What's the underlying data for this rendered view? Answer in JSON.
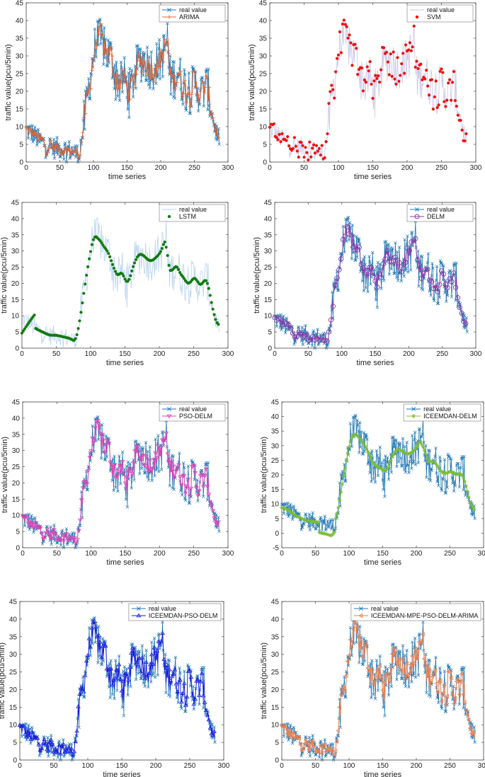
{
  "figure_title": "",
  "chart_data": [
    {
      "type": "line",
      "title": "",
      "xlabel": "time series",
      "ylabel": "traffic value(pcu/5min)",
      "xlim": [
        0,
        300
      ],
      "ylim": [
        0,
        45
      ],
      "xticks": [
        0,
        50,
        100,
        150,
        200,
        250,
        300
      ],
      "yticks": [
        0,
        5,
        10,
        15,
        20,
        25,
        30,
        35,
        40,
        45
      ],
      "series": [
        {
          "name": "real value",
          "color": "#1f77b4",
          "marker": "x",
          "style": "line"
        },
        {
          "name": "ARIMA",
          "color": "#e8622c",
          "marker": "+",
          "style": "line"
        }
      ]
    },
    {
      "type": "line",
      "title": "",
      "xlabel": "time series",
      "ylabel": "traffic value(pcu/5min)",
      "xlim": [
        0,
        300
      ],
      "ylim": [
        0,
        45
      ],
      "xticks": [
        0,
        50,
        100,
        150,
        200,
        250,
        300
      ],
      "yticks": [
        0,
        5,
        10,
        15,
        20,
        25,
        30,
        35,
        40,
        45
      ],
      "series": [
        {
          "name": "real value",
          "color": "#c9c3e6",
          "marker": "none",
          "style": "line"
        },
        {
          "name": "SVM",
          "color": "#ee1111",
          "marker": "dot",
          "style": "scatter"
        }
      ]
    },
    {
      "type": "line",
      "title": "",
      "xlabel": "time series",
      "ylabel": "traffic value(pcu/5min)",
      "xlim": [
        0,
        300
      ],
      "ylim": [
        0,
        45
      ],
      "xticks": [
        0,
        50,
        100,
        150,
        200,
        250,
        300
      ],
      "yticks": [
        0,
        5,
        10,
        15,
        20,
        25,
        30,
        35,
        40,
        45
      ],
      "series": [
        {
          "name": "real value",
          "color": "#b7d3ee",
          "marker": "none",
          "style": "line"
        },
        {
          "name": "LSTM",
          "color": "#127a12",
          "marker": "dot",
          "style": "scatter"
        }
      ]
    },
    {
      "type": "line",
      "title": "",
      "xlabel": "time series",
      "ylabel": "traffic value(pcu/5min)",
      "xlim": [
        0,
        300
      ],
      "ylim": [
        0,
        45
      ],
      "xticks": [
        0,
        50,
        100,
        150,
        200,
        250,
        300
      ],
      "yticks": [
        0,
        5,
        10,
        15,
        20,
        25,
        30,
        35,
        40,
        45
      ],
      "series": [
        {
          "name": "real value",
          "color": "#1f77b4",
          "marker": "x",
          "style": "line"
        },
        {
          "name": "DELM",
          "color": "#8a3aa8",
          "marker": "o",
          "style": "line"
        }
      ]
    },
    {
      "type": "line",
      "title": "",
      "xlabel": "time series",
      "ylabel": "traffic value(pcu/5min)",
      "xlim": [
        0,
        300
      ],
      "ylim": [
        0,
        45
      ],
      "xticks": [
        0,
        50,
        100,
        150,
        200,
        250,
        300
      ],
      "yticks": [
        0,
        5,
        10,
        15,
        20,
        25,
        30,
        35,
        40,
        45
      ],
      "series": [
        {
          "name": "real value",
          "color": "#1f77b4",
          "marker": "x",
          "style": "line"
        },
        {
          "name": "PSO-DELM",
          "color": "#e23fb4",
          "marker": "v",
          "style": "line"
        }
      ]
    },
    {
      "type": "line",
      "title": "",
      "xlabel": "time series",
      "ylabel": "traffic value(pcu/5min)",
      "xlim": [
        0,
        300
      ],
      "ylim": [
        -5,
        45
      ],
      "xticks": [
        0,
        50,
        100,
        150,
        200,
        250,
        300
      ],
      "yticks": [
        -5,
        0,
        5,
        10,
        15,
        20,
        25,
        30,
        35,
        40,
        45
      ],
      "series": [
        {
          "name": "real value",
          "color": "#1f77b4",
          "marker": "x",
          "style": "line"
        },
        {
          "name": "ICEEMDAN-DELM",
          "color": "#7cbd32",
          "marker": "*",
          "style": "line"
        }
      ]
    },
    {
      "type": "line",
      "title": "",
      "xlabel": "time series",
      "ylabel": "traffic value(pcu/5min)",
      "xlim": [
        0,
        300
      ],
      "ylim": [
        0,
        45
      ],
      "xticks": [
        0,
        50,
        100,
        150,
        200,
        250,
        300
      ],
      "yticks": [
        0,
        5,
        10,
        15,
        20,
        25,
        30,
        35,
        40,
        45
      ],
      "series": [
        {
          "name": "real value",
          "color": "#1f77b4",
          "marker": "x",
          "style": "line"
        },
        {
          "name": "ICEEMDAN-PSO-DELM",
          "color": "#1a1ae0",
          "marker": "^",
          "style": "line"
        }
      ]
    },
    {
      "type": "line",
      "title": "",
      "xlabel": "time series",
      "ylabel": "traffic value(pcu/5min)",
      "xlim": [
        0,
        300
      ],
      "ylim": [
        0,
        45
      ],
      "xticks": [
        0,
        50,
        100,
        150,
        200,
        250,
        300
      ],
      "yticks": [
        0,
        5,
        10,
        15,
        20,
        25,
        30,
        35,
        40,
        45
      ],
      "series": [
        {
          "name": "real value",
          "color": "#1f77b4",
          "marker": "x",
          "style": "line"
        },
        {
          "name": "ICEEMDAN-MPE-PSO-DELM-ARIMA",
          "color": "#ef7d4a",
          "marker": "<",
          "style": "line"
        }
      ]
    }
  ],
  "series_data": {
    "real_value_anchors": [
      [
        0,
        9
      ],
      [
        10,
        8
      ],
      [
        20,
        6
      ],
      [
        30,
        5
      ],
      [
        40,
        4
      ],
      [
        50,
        4
      ],
      [
        60,
        3.5
      ],
      [
        70,
        3
      ],
      [
        78,
        2
      ],
      [
        84,
        8
      ],
      [
        90,
        17
      ],
      [
        95,
        24
      ],
      [
        100,
        30
      ],
      [
        105,
        35
      ],
      [
        110,
        34
      ],
      [
        115,
        33
      ],
      [
        120,
        31
      ],
      [
        125,
        30
      ],
      [
        130,
        27
      ],
      [
        135,
        24
      ],
      [
        140,
        22
      ],
      [
        145,
        24
      ],
      [
        150,
        21
      ],
      [
        155,
        20
      ],
      [
        160,
        24
      ],
      [
        165,
        27
      ],
      [
        170,
        29
      ],
      [
        175,
        29
      ],
      [
        180,
        28
      ],
      [
        185,
        27
      ],
      [
        190,
        27
      ],
      [
        195,
        28
      ],
      [
        200,
        29
      ],
      [
        205,
        31
      ],
      [
        210,
        35
      ],
      [
        213,
        24
      ],
      [
        220,
        24
      ],
      [
        225,
        26
      ],
      [
        230,
        23
      ],
      [
        235,
        22
      ],
      [
        240,
        20
      ],
      [
        245,
        20
      ],
      [
        250,
        22
      ],
      [
        255,
        21
      ],
      [
        260,
        19
      ],
      [
        265,
        21
      ],
      [
        270,
        21
      ],
      [
        275,
        15
      ],
      [
        280,
        10
      ],
      [
        285,
        7
      ]
    ]
  }
}
